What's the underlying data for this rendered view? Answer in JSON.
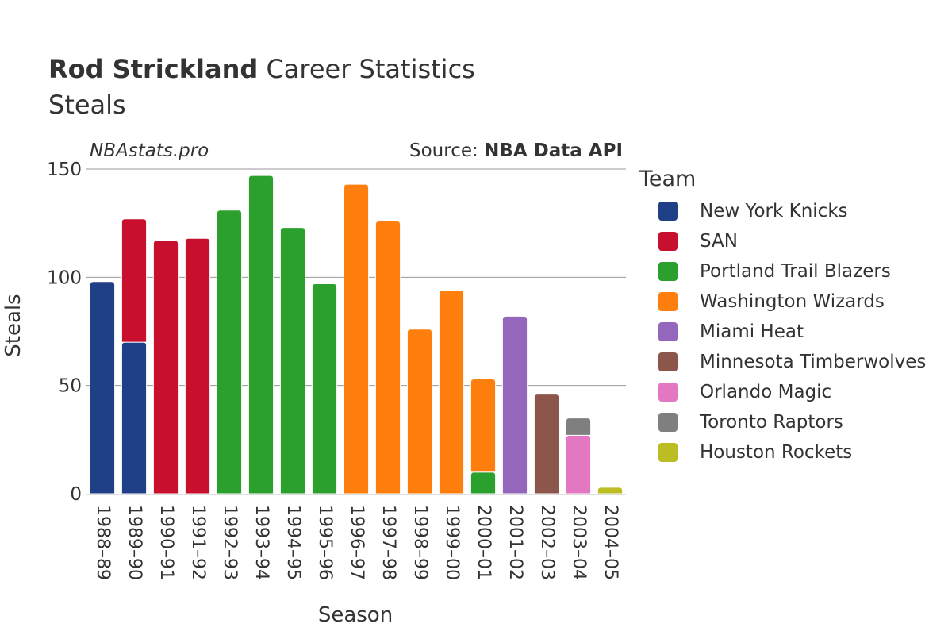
{
  "header": {
    "player": "Rod Strickland",
    "title_suffix": "Career Statistics",
    "subtitle": "Steals"
  },
  "watermark": "NBAstats.pro",
  "source": {
    "prefix": "Source: ",
    "name": "NBA Data API"
  },
  "legend": {
    "title": "Team",
    "items": [
      {
        "name": "New York Knicks",
        "color": "#1f3f86"
      },
      {
        "name": "SAN",
        "color": "#c8102e"
      },
      {
        "name": "Portland Trail Blazers",
        "color": "#2ca02c"
      },
      {
        "name": "Washington Wizards",
        "color": "#ff7f0e"
      },
      {
        "name": "Miami Heat",
        "color": "#9467bd"
      },
      {
        "name": "Minnesota Timberwolves",
        "color": "#8c564b"
      },
      {
        "name": "Orlando Magic",
        "color": "#e377c2"
      },
      {
        "name": "Toronto Raptors",
        "color": "#7f7f7f"
      },
      {
        "name": "Houston Rockets",
        "color": "#bcbd22"
      }
    ]
  },
  "chart_data": {
    "type": "bar",
    "stacked": true,
    "xlabel": "Season",
    "ylabel": "Steals",
    "ylim": [
      0,
      150
    ],
    "yticks": [
      0,
      50,
      100,
      150
    ],
    "grid": true,
    "legend_position": "right",
    "categories": [
      "1988–89",
      "1989–90",
      "1990–91",
      "1991–92",
      "1992–93",
      "1993–94",
      "1994–95",
      "1995–96",
      "1996–97",
      "1997–98",
      "1998–99",
      "1999–00",
      "2000–01",
      "2001–02",
      "2002–03",
      "2003–04",
      "2004–05"
    ],
    "series": [
      {
        "name": "New York Knicks",
        "color": "#1f3f86",
        "values": [
          98,
          70,
          0,
          0,
          0,
          0,
          0,
          0,
          0,
          0,
          0,
          0,
          0,
          0,
          0,
          0,
          0
        ]
      },
      {
        "name": "SAN",
        "color": "#c8102e",
        "values": [
          0,
          57,
          117,
          118,
          0,
          0,
          0,
          0,
          0,
          0,
          0,
          0,
          0,
          0,
          0,
          0,
          0
        ]
      },
      {
        "name": "Portland Trail Blazers",
        "color": "#2ca02c",
        "values": [
          0,
          0,
          0,
          0,
          131,
          147,
          123,
          97,
          0,
          0,
          0,
          0,
          10,
          0,
          0,
          0,
          0
        ]
      },
      {
        "name": "Washington Wizards",
        "color": "#ff7f0e",
        "values": [
          0,
          0,
          0,
          0,
          0,
          0,
          0,
          0,
          143,
          126,
          76,
          94,
          43,
          0,
          0,
          0,
          0
        ]
      },
      {
        "name": "Miami Heat",
        "color": "#9467bd",
        "values": [
          0,
          0,
          0,
          0,
          0,
          0,
          0,
          0,
          0,
          0,
          0,
          0,
          0,
          82,
          0,
          0,
          0
        ]
      },
      {
        "name": "Minnesota Timberwolves",
        "color": "#8c564b",
        "values": [
          0,
          0,
          0,
          0,
          0,
          0,
          0,
          0,
          0,
          0,
          0,
          0,
          0,
          0,
          46,
          0,
          0
        ]
      },
      {
        "name": "Orlando Magic",
        "color": "#e377c2",
        "values": [
          0,
          0,
          0,
          0,
          0,
          0,
          0,
          0,
          0,
          0,
          0,
          0,
          0,
          0,
          0,
          27,
          0
        ]
      },
      {
        "name": "Toronto Raptors",
        "color": "#7f7f7f",
        "values": [
          0,
          0,
          0,
          0,
          0,
          0,
          0,
          0,
          0,
          0,
          0,
          0,
          0,
          0,
          0,
          8,
          0
        ]
      },
      {
        "name": "Houston Rockets",
        "color": "#bcbd22",
        "values": [
          0,
          0,
          0,
          0,
          0,
          0,
          0,
          0,
          0,
          0,
          0,
          0,
          0,
          0,
          0,
          0,
          3
        ]
      }
    ]
  }
}
